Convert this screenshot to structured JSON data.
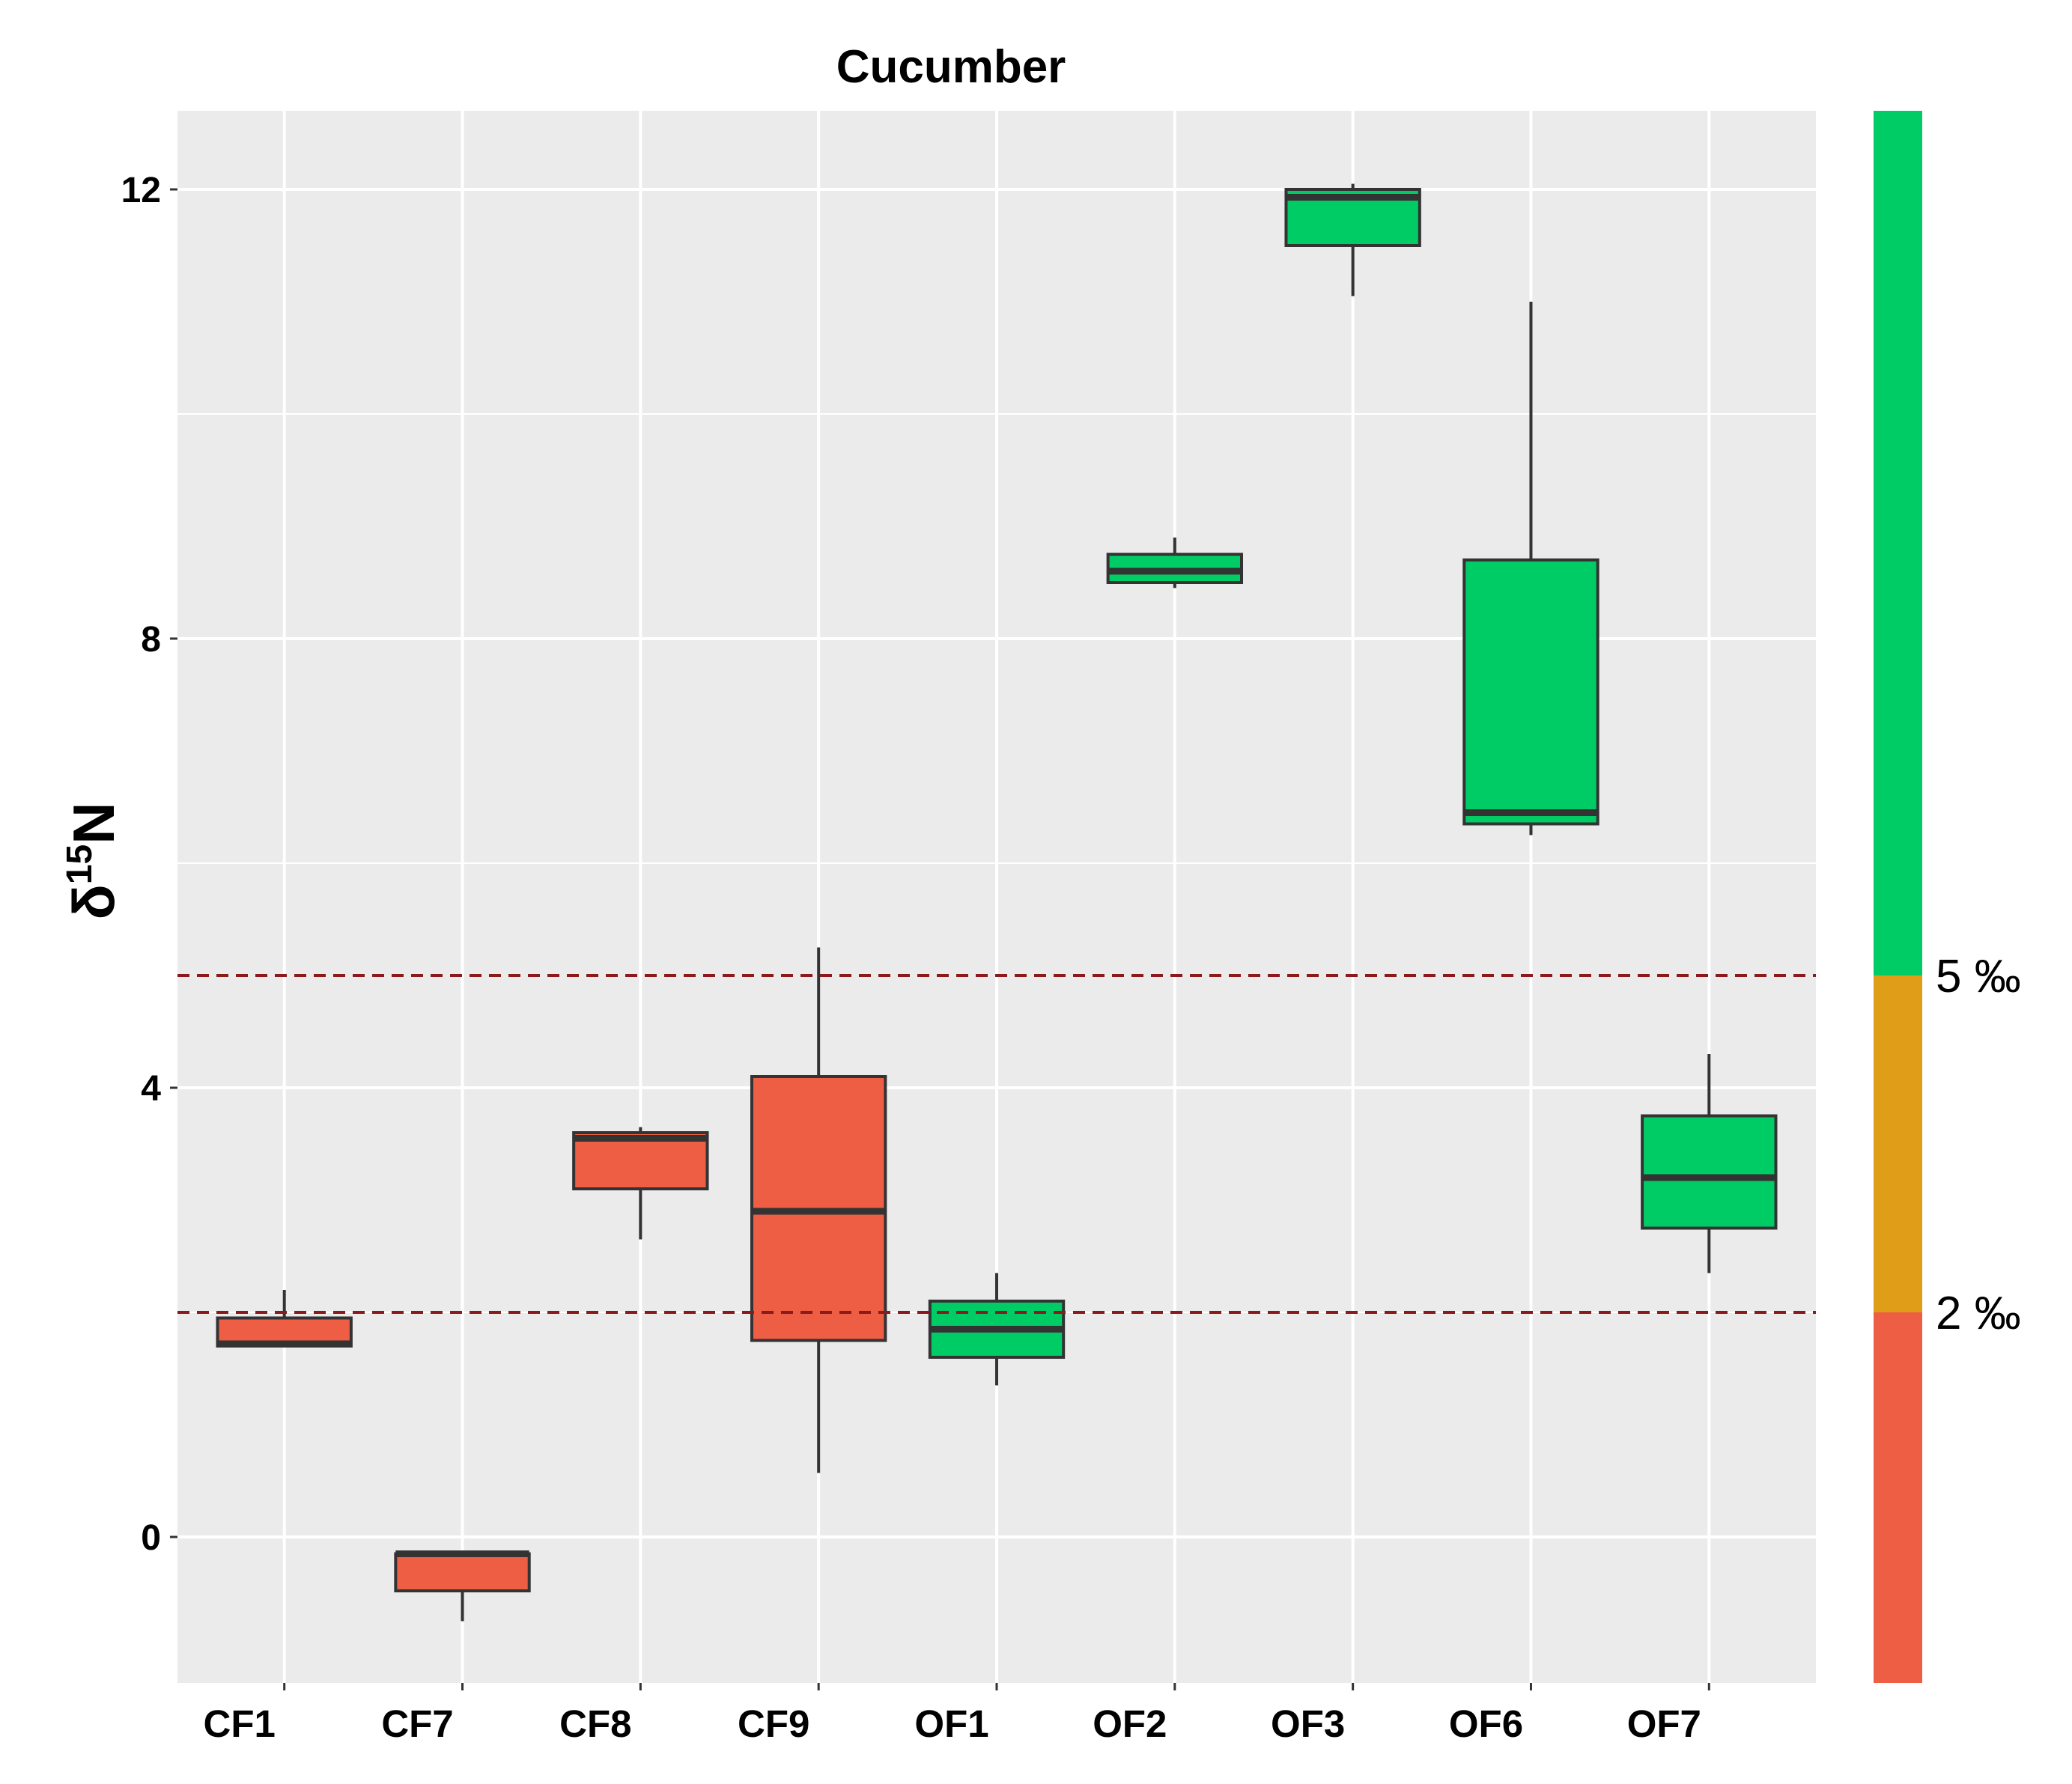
{
  "chart_data": {
    "type": "boxplot",
    "title": "Cucumber",
    "xlabel": "",
    "ylabel": {
      "prefix": "δ",
      "superscript": "15",
      "suffix": "N"
    },
    "ylim": [
      -1.3,
      12.7
    ],
    "yticks": [
      0,
      4,
      8,
      12
    ],
    "categories": [
      "CF1",
      "CF7",
      "CF8",
      "CF9",
      "OF1",
      "OF2",
      "OF3",
      "OF6",
      "OF7"
    ],
    "boxes": [
      {
        "category": "CF1",
        "min": 1.7,
        "q1": 1.7,
        "median": 1.72,
        "q3": 1.95,
        "max": 2.2,
        "color": "#ee5e44"
      },
      {
        "category": "CF7",
        "min": -0.75,
        "q1": -0.48,
        "median": -0.15,
        "q3": -0.15,
        "max": -0.15,
        "color": "#ee5e44"
      },
      {
        "category": "CF8",
        "min": 2.65,
        "q1": 3.1,
        "median": 3.55,
        "q3": 3.6,
        "max": 3.65,
        "color": "#ee5e44"
      },
      {
        "category": "CF9",
        "min": 0.57,
        "q1": 1.75,
        "median": 2.9,
        "q3": 4.1,
        "max": 5.25,
        "color": "#ee5e44"
      },
      {
        "category": "OF1",
        "min": 1.35,
        "q1": 1.6,
        "median": 1.85,
        "q3": 2.1,
        "max": 2.35,
        "color": "#00cc66"
      },
      {
        "category": "OF2",
        "min": 8.45,
        "q1": 8.5,
        "median": 8.6,
        "q3": 8.75,
        "max": 8.9,
        "color": "#00cc66"
      },
      {
        "category": "OF3",
        "min": 11.05,
        "q1": 11.5,
        "median": 11.93,
        "q3": 12.0,
        "max": 12.05,
        "color": "#00cc66"
      },
      {
        "category": "OF6",
        "min": 6.25,
        "q1": 6.35,
        "median": 6.45,
        "q3": 8.7,
        "max": 11.0,
        "color": "#00cc66"
      },
      {
        "category": "OF7",
        "min": 2.35,
        "q1": 2.75,
        "median": 3.2,
        "q3": 3.75,
        "max": 4.3,
        "color": "#00cc66"
      }
    ],
    "reference_lines": [
      {
        "y": 2,
        "style": "dashed",
        "color": "#8b1a1a"
      },
      {
        "y": 5,
        "style": "dashed",
        "color": "#8b1a1a"
      }
    ],
    "color_bar": {
      "segments": [
        {
          "from": -1.3,
          "to": 2,
          "color": "#ee5e44"
        },
        {
          "from": 2,
          "to": 5,
          "color": "#e09e18"
        },
        {
          "from": 5,
          "to": 12.7,
          "color": "#00cc66"
        }
      ],
      "labels": [
        {
          "value": 2,
          "text": "2 ‰"
        },
        {
          "value": 5,
          "text": "5 ‰"
        }
      ]
    },
    "grid": true,
    "legend": "right"
  }
}
